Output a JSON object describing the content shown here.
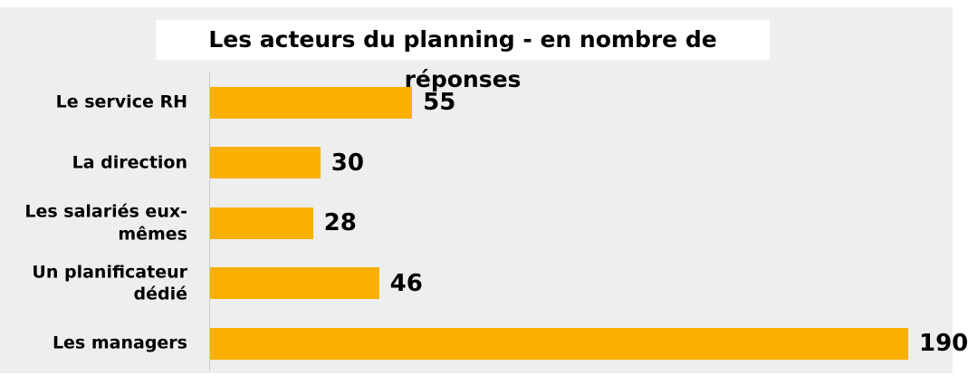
{
  "chart_data": {
    "type": "bar",
    "orientation": "horizontal",
    "title": "Les acteurs du planning - en nombre de réponses",
    "categories": [
      "Le service RH",
      "La direction",
      "Les salariés eux-mêmes",
      "Un planificateur dédié",
      "Les managers"
    ],
    "values": [
      55,
      30,
      28,
      46,
      190
    ],
    "color": "#f9b000"
  }
}
